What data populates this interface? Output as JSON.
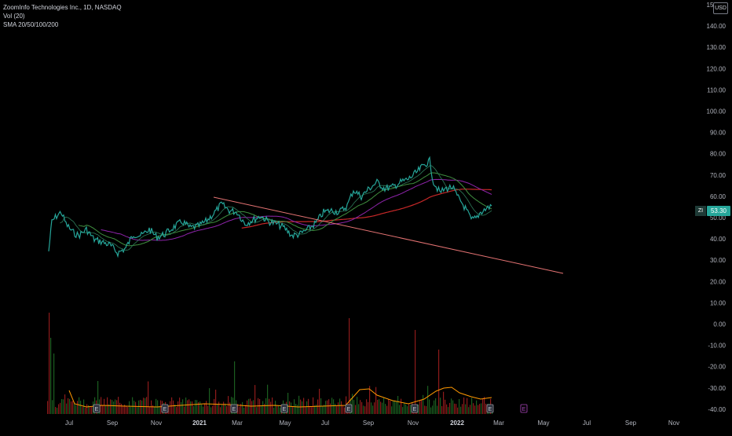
{
  "legend": {
    "symbol_line": "ZoomInfo Technologies Inc., 1D, NASDAQ",
    "volume_line": "Vol (20)",
    "sma_line": "SMA 20/50/100/200"
  },
  "currency": "USD",
  "symbol": "ZI",
  "last_price": "53.30",
  "colors": {
    "price_line": "#26a69a",
    "sma20": "#26a69a",
    "sma50": "#3f8f3f",
    "sma100": "#8e24aa",
    "sma200": "#c62828",
    "trendline": "#e57373",
    "volume_ma": "#ff9800",
    "vol_up": "#1b5e20",
    "vol_down": "#8e1b1b",
    "axis_text": "#b2b5be"
  },
  "price_axis": {
    "labels": [
      "150.00",
      "140.00",
      "130.00",
      "120.00",
      "110.00",
      "100.00",
      "90.00",
      "80.00",
      "70.00",
      "60.00",
      "50.00",
      "40.00",
      "30.00",
      "20.00",
      "10.00",
      "0.00",
      "-10.00",
      "-20.00",
      "-30.00",
      "-40.00"
    ]
  },
  "time_axis": {
    "labels": [
      "Jul",
      "Sep",
      "Nov",
      "2021",
      "Mar",
      "May",
      "Jul",
      "Sep",
      "Nov",
      "2022",
      "Mar",
      "May",
      "Jul",
      "Sep",
      "Nov"
    ]
  },
  "earnings_markers": [
    {
      "label": "E",
      "kind": "past"
    },
    {
      "label": "E",
      "kind": "past"
    },
    {
      "label": "E",
      "kind": "past"
    },
    {
      "label": "E",
      "kind": "past"
    },
    {
      "label": "E",
      "kind": "past"
    },
    {
      "label": "E",
      "kind": "past"
    },
    {
      "label": "E",
      "kind": "past"
    },
    {
      "label": "E",
      "kind": "future"
    }
  ]
}
